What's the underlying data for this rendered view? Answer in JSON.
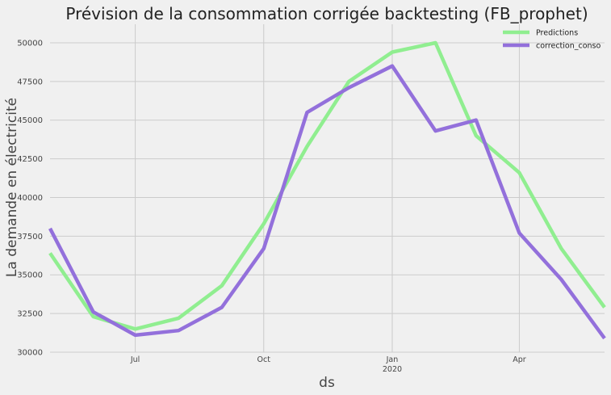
{
  "chart_data": {
    "type": "line",
    "title": "Prévision de la consommation corrigée backtesting (FB_prophet)",
    "xlabel": "ds",
    "ylabel": "La demande en électricité",
    "x": [
      "2019-05-01",
      "2019-06-01",
      "2019-07-01",
      "2019-08-01",
      "2019-09-01",
      "2019-10-01",
      "2019-11-01",
      "2019-12-01",
      "2020-01-01",
      "2020-02-01",
      "2020-03-01",
      "2020-04-01",
      "2020-05-01",
      "2020-06-01"
    ],
    "xlim": [
      "2019-05-01",
      "2020-06-01"
    ],
    "xticks": [
      {
        "date": "2019-07-01",
        "label": "Jul",
        "sublabel": ""
      },
      {
        "date": "2019-10-01",
        "label": "Oct",
        "sublabel": ""
      },
      {
        "date": "2020-01-01",
        "label": "Jan",
        "sublabel": "2020"
      },
      {
        "date": "2020-04-01",
        "label": "Apr",
        "sublabel": ""
      }
    ],
    "ylim": [
      30000,
      51200
    ],
    "yticks": [
      30000,
      32500,
      35000,
      37500,
      40000,
      42500,
      45000,
      47500,
      50000
    ],
    "grid": true,
    "legend_position": "top-right",
    "series": [
      {
        "name": "Predictions",
        "color": "#90ee90",
        "values": [
          36400,
          32300,
          31500,
          32200,
          34300,
          38300,
          43300,
          47500,
          49400,
          50000,
          44000,
          41600,
          36700,
          32900
        ]
      },
      {
        "name": "correction_conso",
        "color": "#9370db",
        "values": [
          38000,
          32600,
          31100,
          31400,
          32900,
          36700,
          45500,
          47100,
          48500,
          44300,
          45000,
          37700,
          34700,
          30900
        ]
      }
    ]
  }
}
